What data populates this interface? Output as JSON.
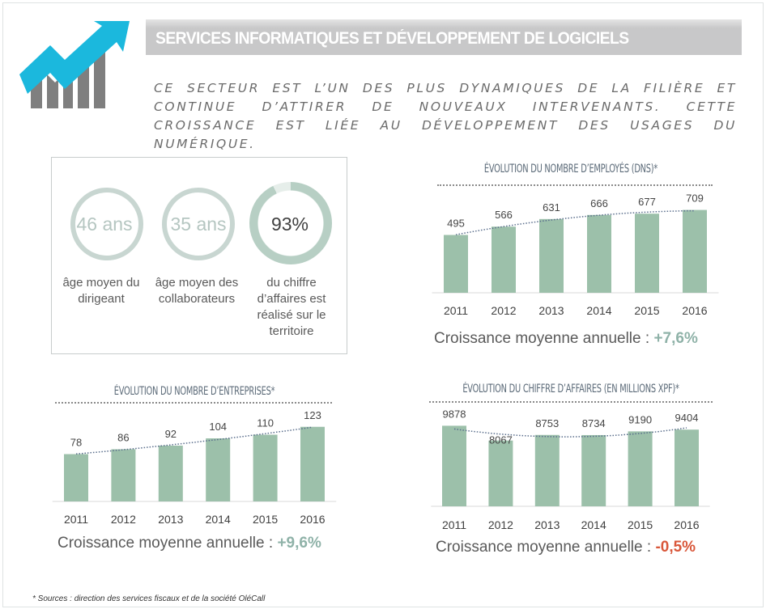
{
  "header": {
    "title": "SERVICES INFORMATIQUES ET DÉVELOPPEMENT DE LOGICIELS",
    "intro": "CE SECTEUR EST L’UN DES PLUS DYNAMIQUES DE LA FILIÈRE ET CONTINUE D’ATTIRER DE NOUVEAUX INTERVENANTS. CETTE CROISSANCE EST LIÉE AU DÉVELOPPEMENT DES USAGES DU NUMÉRIQUE.",
    "logo_icon": "growth-chart-arrow-icon",
    "colors": {
      "arrow": "#1bb8dd",
      "bars": "#7f7f7f",
      "banner": "#c8c8c9"
    }
  },
  "stats": [
    {
      "value": "46 ans",
      "label": "âge moyen du dirigeant"
    },
    {
      "value": "35 ans",
      "label": "âge moyen des collaborateurs"
    },
    {
      "value": "93%",
      "label": "du chiffre d’affaires est réalisé sur le territoire",
      "percent": 93
    }
  ],
  "colors": {
    "bar": "#9cc0aa",
    "ring": "#c3d2cc",
    "positive": "#8fb2a8",
    "negative": "#d9573a",
    "trend": "#5a6e8c"
  },
  "chart_data": [
    {
      "type": "bar",
      "title": "ÉVOLUTION DU NOMBRE D’EMPLOYÉS (DNS)*",
      "categories": [
        "2011",
        "2012",
        "2013",
        "2014",
        "2015",
        "2016"
      ],
      "values": [
        495,
        566,
        631,
        666,
        677,
        709
      ],
      "ylim": [
        0,
        900
      ],
      "trendline": "dotted",
      "grid": false,
      "growth_label": "Croissance moyenne annuelle : ",
      "growth_value": "+7,6%",
      "growth_sign": "positive"
    },
    {
      "type": "bar",
      "title": "ÉVOLUTION DU NOMBRE D’ENTREPRISES*",
      "categories": [
        "2011",
        "2012",
        "2013",
        "2014",
        "2015",
        "2016"
      ],
      "values": [
        78,
        86,
        92,
        104,
        110,
        123
      ],
      "ylim": [
        0,
        160
      ],
      "trendline": "dotted",
      "grid": false,
      "growth_label": "Croissance moyenne annuelle : ",
      "growth_value": "+9,6%",
      "growth_sign": "positive"
    },
    {
      "type": "bar",
      "title": "ÉVOLUTION DU CHIFFRE D’AFFAIRES (EN MILLIONS XPF)*",
      "categories": [
        "2011",
        "2012",
        "2013",
        "2014",
        "2015",
        "2016"
      ],
      "values": [
        9878,
        8067,
        8753,
        8734,
        9190,
        9404
      ],
      "ylim": [
        0,
        12500
      ],
      "trendline": "dotted",
      "grid": false,
      "growth_label": "Croissance moyenne annuelle : ",
      "growth_value": "-0,5%",
      "growth_sign": "negative"
    }
  ],
  "footnote": "* Sources : direction des services fiscaux et de la société OléCall"
}
